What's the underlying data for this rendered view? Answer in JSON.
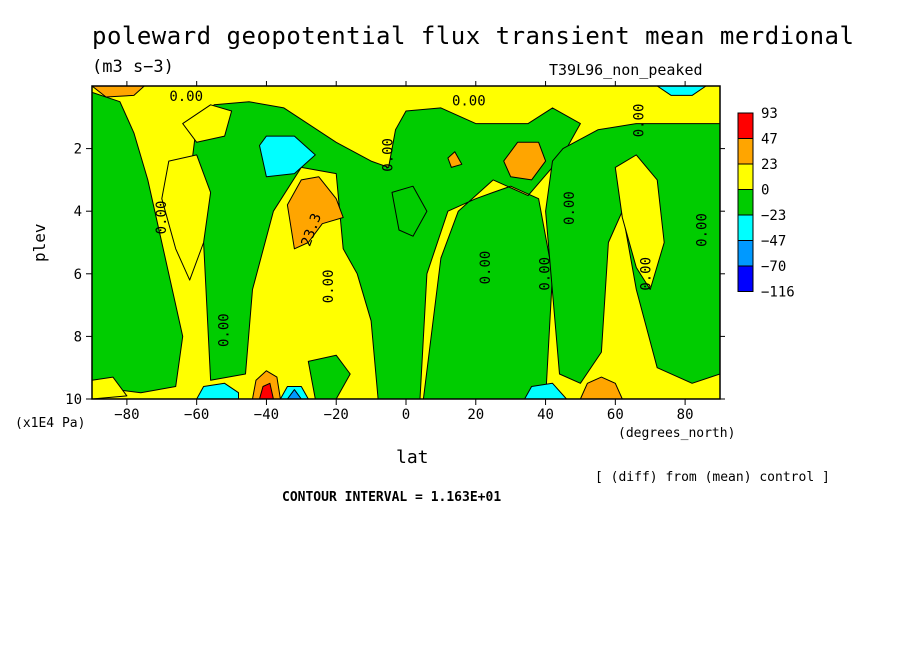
{
  "chart_data": {
    "type": "heatmap",
    "title": "poleward geopotential flux transient mean merdional",
    "units": "(m3 s−3)",
    "experiment": "T39L96_non_peaked",
    "xlabel": "lat",
    "x_unit_label": "(degrees_north)",
    "ylabel": "plev",
    "y_unit_label": "(x1E4 Pa)",
    "note": "[ (diff) from (mean) control ]",
    "contour_interval_label": "CONTOUR INTERVAL = 1.163E+01",
    "xlim": [
      -90,
      90
    ],
    "ylim": [
      0,
      10
    ],
    "x_ticks": [
      -80,
      -60,
      -40,
      -20,
      0,
      20,
      40,
      60,
      80
    ],
    "y_ticks": [
      2,
      4,
      6,
      8,
      10
    ],
    "y_inverted": true,
    "colorbar": {
      "labels": [
        "93",
        "47",
        "23",
        "0",
        "−23",
        "−47",
        "−70",
        "−116"
      ],
      "colors": [
        "#ff0000",
        "#ffa500",
        "#ffff00",
        "#00cc00",
        "#00ffff",
        "#0099ff",
        "#0000ff"
      ]
    },
    "background_color": "#ffff00",
    "regions": [
      {
        "color": "#00cc00",
        "pts": [
          [
            -90,
            0.2
          ],
          [
            -82,
            0.5
          ],
          [
            -78,
            1.5
          ],
          [
            -74,
            3
          ],
          [
            -70,
            5
          ],
          [
            -64,
            8
          ],
          [
            -66,
            9.6
          ],
          [
            -76,
            9.8
          ],
          [
            -90,
            9.6
          ]
        ]
      },
      {
        "color": "#00cc00",
        "pts": [
          [
            -60,
            1.2
          ],
          [
            -55,
            0.6
          ],
          [
            -45,
            0.5
          ],
          [
            -35,
            0.7
          ],
          [
            -20,
            1.8
          ],
          [
            -10,
            2.4
          ],
          [
            -5,
            2.6
          ],
          [
            -3,
            1.4
          ],
          [
            0,
            0.8
          ],
          [
            10,
            0.7
          ],
          [
            20,
            1.2
          ],
          [
            35,
            1.2
          ],
          [
            42,
            0.7
          ],
          [
            50,
            1.2
          ],
          [
            45,
            2.2
          ],
          [
            35,
            3.5
          ],
          [
            25,
            3.0
          ],
          [
            15,
            4.0
          ],
          [
            10,
            5.5
          ],
          [
            5,
            10
          ],
          [
            40,
            10
          ],
          [
            42,
            6
          ],
          [
            38,
            3.6
          ],
          [
            30,
            3.2
          ],
          [
            25,
            3.4
          ],
          [
            20,
            3.6
          ],
          [
            12,
            4.0
          ],
          [
            6,
            6.0
          ],
          [
            4,
            10
          ],
          [
            -8,
            10
          ],
          [
            -10,
            7.5
          ],
          [
            -14,
            6
          ],
          [
            -18,
            5.2
          ],
          [
            -20,
            2.8
          ],
          [
            -30,
            2.6
          ],
          [
            -38,
            4
          ],
          [
            -44,
            6.5
          ],
          [
            -46,
            9.2
          ],
          [
            -56,
            9.4
          ],
          [
            -58,
            5
          ],
          [
            -62,
            3
          ]
        ]
      },
      {
        "color": "#00cc00",
        "pts": [
          [
            45,
            2
          ],
          [
            55,
            1.4
          ],
          [
            66,
            1.2
          ],
          [
            76,
            1.2
          ],
          [
            90,
            1.2
          ],
          [
            90,
            9.2
          ],
          [
            82,
            9.5
          ],
          [
            72,
            9
          ],
          [
            66,
            6.5
          ],
          [
            62,
            4
          ],
          [
            58,
            5
          ],
          [
            56,
            8.5
          ],
          [
            50,
            9.5
          ],
          [
            44,
            9.2
          ],
          [
            40,
            4
          ],
          [
            42,
            2.4
          ]
        ]
      },
      {
        "color": "#00cc00",
        "pts": [
          [
            -4,
            3.4
          ],
          [
            2,
            3.2
          ],
          [
            6,
            4
          ],
          [
            2,
            4.8
          ],
          [
            -2,
            4.6
          ]
        ]
      },
      {
        "color": "#00cc00",
        "pts": [
          [
            -28,
            8.8
          ],
          [
            -20,
            8.6
          ],
          [
            -16,
            9.2
          ],
          [
            -20,
            10
          ],
          [
            -26,
            10
          ]
        ]
      },
      {
        "color": "#ffff00",
        "pts": [
          [
            -68,
            2.4
          ],
          [
            -60,
            2.2
          ],
          [
            -56,
            3.4
          ],
          [
            -58,
            5
          ],
          [
            -62,
            6.2
          ],
          [
            -66,
            5.2
          ],
          [
            -70,
            3.6
          ]
        ]
      },
      {
        "color": "#ffff00",
        "pts": [
          [
            60,
            2.6
          ],
          [
            66,
            2.2
          ],
          [
            72,
            3.0
          ],
          [
            74,
            5.0
          ],
          [
            70,
            6.5
          ],
          [
            66,
            5.8
          ],
          [
            62,
            4.2
          ]
        ]
      },
      {
        "color": "#ffff00",
        "pts": [
          [
            -90,
            9.4
          ],
          [
            -84,
            9.3
          ],
          [
            -80,
            9.9
          ],
          [
            -90,
            10
          ]
        ]
      },
      {
        "color": "#ffff00",
        "pts": [
          [
            -64,
            1.2
          ],
          [
            -56,
            0.6
          ],
          [
            -50,
            0.8
          ],
          [
            -52,
            1.6
          ],
          [
            -60,
            1.8
          ]
        ]
      },
      {
        "color": "#ffa500",
        "pts": [
          [
            -34,
            3.8
          ],
          [
            -30,
            3.0
          ],
          [
            -25,
            2.9
          ],
          [
            -20,
            3.6
          ],
          [
            -18,
            4.2
          ],
          [
            -24,
            4.4
          ],
          [
            -28,
            5.0
          ],
          [
            -32,
            5.2
          ]
        ]
      },
      {
        "color": "#ffa500",
        "pts": [
          [
            28,
            2.4
          ],
          [
            32,
            1.8
          ],
          [
            38,
            1.8
          ],
          [
            40,
            2.4
          ],
          [
            36,
            3.0
          ],
          [
            30,
            2.9
          ]
        ]
      },
      {
        "color": "#ffa500",
        "pts": [
          [
            12,
            2.3
          ],
          [
            14,
            2.1
          ],
          [
            16,
            2.5
          ],
          [
            13,
            2.6
          ]
        ]
      },
      {
        "color": "#ffa500",
        "pts": [
          [
            -90,
            0
          ],
          [
            -75,
            0
          ],
          [
            -78,
            0.3
          ],
          [
            -86,
            0.35
          ]
        ]
      },
      {
        "color": "#ffa500",
        "pts": [
          [
            -94,
            9.5
          ],
          [
            -92,
            9.3
          ],
          [
            -90,
            9.6
          ],
          [
            -92,
            9.8
          ]
        ]
      },
      {
        "color": "#ffa500",
        "pts": [
          [
            -44,
            10
          ],
          [
            -43,
            9.4
          ],
          [
            -40,
            9.1
          ],
          [
            -37,
            9.3
          ],
          [
            -36,
            10
          ]
        ]
      },
      {
        "color": "#ffa500",
        "pts": [
          [
            50,
            10
          ],
          [
            52,
            9.5
          ],
          [
            56,
            9.3
          ],
          [
            60,
            9.5
          ],
          [
            62,
            10
          ]
        ]
      },
      {
        "color": "#ff0000",
        "pts": [
          [
            -42,
            10
          ],
          [
            -41,
            9.6
          ],
          [
            -39,
            9.5
          ],
          [
            -38,
            10
          ]
        ]
      },
      {
        "color": "#00ffff",
        "pts": [
          [
            -42,
            1.9
          ],
          [
            -40,
            1.6
          ],
          [
            -32,
            1.6
          ],
          [
            -26,
            2.2
          ],
          [
            -32,
            2.8
          ],
          [
            -40,
            2.9
          ]
        ]
      },
      {
        "color": "#00ffff",
        "pts": [
          [
            -60,
            10
          ],
          [
            -58,
            9.6
          ],
          [
            -52,
            9.5
          ],
          [
            -48,
            9.8
          ],
          [
            -48,
            10
          ]
        ]
      },
      {
        "color": "#00ffff",
        "pts": [
          [
            -36,
            10
          ],
          [
            -34,
            9.6
          ],
          [
            -30,
            9.6
          ],
          [
            -28,
            10
          ]
        ]
      },
      {
        "color": "#00ffff",
        "pts": [
          [
            34,
            10
          ],
          [
            36,
            9.6
          ],
          [
            42,
            9.5
          ],
          [
            46,
            10
          ]
        ]
      },
      {
        "color": "#00ffff",
        "pts": [
          [
            72,
            0
          ],
          [
            86,
            0
          ],
          [
            82,
            0.3
          ],
          [
            76,
            0.3
          ]
        ]
      },
      {
        "color": "#0099ff",
        "pts": [
          [
            -34,
            10
          ],
          [
            -32,
            9.7
          ],
          [
            -30,
            10
          ]
        ]
      }
    ],
    "contour_labels": [
      {
        "text": "0.00",
        "x": -70,
        "y": 4.2,
        "rotate": -90
      },
      {
        "text": "0.00",
        "x": -52,
        "y": 7.8,
        "rotate": -90
      },
      {
        "text": "0.00",
        "x": -22,
        "y": 6.4,
        "rotate": -90
      },
      {
        "text": "0.00",
        "x": -5,
        "y": 2.2,
        "rotate": -90
      },
      {
        "text": "0.00",
        "x": 23,
        "y": 5.8,
        "rotate": -90
      },
      {
        "text": "0.00",
        "x": 40,
        "y": 6.0,
        "rotate": -90
      },
      {
        "text": "0.00",
        "x": 47,
        "y": 3.9,
        "rotate": -90
      },
      {
        "text": "0.00",
        "x": 69,
        "y": 6.0,
        "rotate": -90
      },
      {
        "text": "0.00",
        "x": 85,
        "y": 4.6,
        "rotate": -90
      },
      {
        "text": "0.00",
        "x": 67,
        "y": 1.1,
        "rotate": -90
      },
      {
        "text": "0.00",
        "x": -63,
        "y": 0.35,
        "rotate": 0
      },
      {
        "text": "0.00",
        "x": 18,
        "y": 0.5,
        "rotate": 0
      },
      {
        "text": "23.3",
        "x": -27,
        "y": 4.6,
        "rotate": -70
      }
    ]
  }
}
